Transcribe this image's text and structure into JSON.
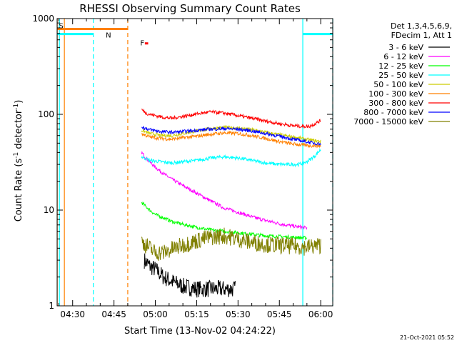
{
  "chart_data": {
    "type": "line",
    "title": "RHESSI Observing Summary Count Rates",
    "xlabel": "Start Time (13-Nov-02 04:24:22)",
    "ylabel": "Count Rate (s",
    "ylabel_sup1": "-1",
    "ylabel_mid": " detector",
    "ylabel_sup2": "-1",
    "ylabel_end": ")",
    "y_scale": "log",
    "ylim": [
      1,
      1000
    ],
    "xlim_minutes": [
      24.37,
      124.37
    ],
    "x_ticks": [
      {
        "minute": 30,
        "label": "04:30"
      },
      {
        "minute": 45,
        "label": "04:45"
      },
      {
        "minute": 60,
        "label": "05:00"
      },
      {
        "minute": 75,
        "label": "05:15"
      },
      {
        "minute": 90,
        "label": "05:30"
      },
      {
        "minute": 105,
        "label": "05:45"
      },
      {
        "minute": 120,
        "label": "06:00"
      }
    ],
    "y_ticks": [
      {
        "value": 1,
        "label": "1"
      },
      {
        "value": 10,
        "label": "10"
      },
      {
        "value": 100,
        "label": "100"
      },
      {
        "value": 1000,
        "label": "1000"
      }
    ],
    "legend_header": [
      "Det 1,3,4,5,6,9,",
      "FDecim 1, Att 1"
    ],
    "legend_placement": "right",
    "series": [
      {
        "name": "3 - 6 keV",
        "color": "#000000",
        "x": [
          56,
          58,
          60,
          63,
          66,
          70,
          75,
          80,
          85,
          89
        ],
        "y": [
          3.0,
          2.6,
          2.4,
          2.0,
          1.8,
          1.6,
          1.5,
          1.5,
          1.5,
          1.5
        ]
      },
      {
        "name": "6 - 12 keV",
        "color": "#ff00ff",
        "x": [
          55,
          57,
          60,
          63,
          66,
          70,
          75,
          80,
          85,
          90,
          95,
          100,
          105,
          110,
          115
        ],
        "y": [
          40,
          34,
          28,
          24,
          21,
          18,
          15,
          12.5,
          10.5,
          9.5,
          8.5,
          7.8,
          7.2,
          6.8,
          6.5
        ]
      },
      {
        "name": "12 - 25 keV",
        "color": "#00ff00",
        "x": [
          55,
          58,
          60,
          63,
          66,
          70,
          75,
          80,
          85,
          90,
          95,
          100,
          105,
          110,
          115
        ],
        "y": [
          12,
          10,
          9,
          8.3,
          7.6,
          7.1,
          6.6,
          6.2,
          6.0,
          5.8,
          5.6,
          5.4,
          5.3,
          5.2,
          5.1
        ]
      },
      {
        "name": "25 - 50 keV",
        "color": "#00ffff",
        "x": [
          55,
          58,
          62,
          66,
          70,
          75,
          80,
          85,
          90,
          95,
          100,
          105,
          110,
          112,
          115,
          118,
          120
        ],
        "y": [
          36,
          33,
          32,
          31,
          32,
          33,
          35,
          36,
          35,
          33,
          31,
          30,
          30,
          30,
          32,
          37,
          43
        ]
      },
      {
        "name": "50 - 100 keV",
        "color": "#cccc00",
        "x": [
          55,
          58,
          62,
          66,
          70,
          75,
          80,
          85,
          90,
          95,
          100,
          105,
          110,
          113,
          116,
          118,
          120
        ],
        "y": [
          68,
          63,
          60,
          60,
          63,
          67,
          71,
          73,
          72,
          69,
          65,
          61,
          58,
          56,
          54,
          53,
          52
        ]
      },
      {
        "name": "100 - 300 keV",
        "color": "#ff8000",
        "x": [
          55,
          58,
          62,
          66,
          70,
          75,
          80,
          85,
          90,
          95,
          100,
          105,
          110,
          113,
          116,
          118,
          120
        ],
        "y": [
          63,
          58,
          56,
          55,
          57,
          59,
          62,
          64,
          63,
          60,
          56,
          52,
          49,
          48,
          47,
          47,
          47
        ]
      },
      {
        "name": "300 - 800 keV",
        "color": "#ff0000",
        "x": [
          55,
          57,
          60,
          63,
          66,
          70,
          75,
          80,
          85,
          90,
          95,
          100,
          105,
          110,
          113,
          116,
          118,
          120
        ],
        "y": [
          112,
          102,
          97,
          93,
          91,
          95,
          101,
          106,
          103,
          97,
          91,
          85,
          80,
          76,
          75,
          75,
          80,
          86
        ]
      },
      {
        "name": "800 - 7000 keV",
        "color": "#0000ff",
        "x": [
          55,
          58,
          62,
          66,
          70,
          75,
          80,
          85,
          90,
          95,
          100,
          105,
          110,
          113,
          116,
          118,
          120
        ],
        "y": [
          74,
          69,
          66,
          65,
          66,
          68,
          70,
          71,
          70,
          67,
          63,
          59,
          55,
          53,
          51,
          50,
          49
        ]
      },
      {
        "name": "7000 - 15000 keV",
        "color": "#808000",
        "x": [
          55,
          58,
          60,
          63,
          66,
          70,
          75,
          80,
          85,
          90,
          95,
          100,
          105,
          110,
          115,
          120
        ],
        "y": [
          4.7,
          4.0,
          3.6,
          3.6,
          3.9,
          4.3,
          4.8,
          5.2,
          5.4,
          5.0,
          4.6,
          4.4,
          4.3,
          4.2,
          4.1,
          4.3
        ]
      }
    ],
    "annotations": [
      {
        "text": "S",
        "color": "#ff8000",
        "x_minute": 24.5,
        "y_value": 850
      },
      {
        "text": "N",
        "color": "#00ffff",
        "x_minute": 41.5,
        "y_value": 680
      },
      {
        "text": "F",
        "color": "#ff0000",
        "x_minute": 54.0,
        "y_value": 560
      }
    ],
    "bars": [
      {
        "color": "#ff8000",
        "x_start": 24.37,
        "x_end": 50.0,
        "y_value": 780
      },
      {
        "color": "#00ffff",
        "x_start": 24.37,
        "x_end": 37.5,
        "y_value": 690
      },
      {
        "color": "#00ffff",
        "x_start": 113.5,
        "x_end": 124.37,
        "y_value": 690
      }
    ],
    "vlines": [
      {
        "color": "#ff8000",
        "x_minute": 24.4,
        "style": "solid"
      },
      {
        "color": "#ff8000",
        "x_minute": 27.0,
        "style": "solid"
      },
      {
        "color": "#00ffff",
        "x_minute": 25.2,
        "style": "solid"
      },
      {
        "color": "#00ffff",
        "x_minute": 37.5,
        "style": "dashed"
      },
      {
        "color": "#ff8000",
        "x_minute": 50.0,
        "style": "dashed"
      },
      {
        "color": "#00ffff",
        "x_minute": 113.5,
        "style": "solid"
      },
      {
        "color": "#00ffff",
        "x_minute": 124.37,
        "style": "dashed"
      }
    ],
    "footer_date": "21-Oct-2021 05:52"
  }
}
